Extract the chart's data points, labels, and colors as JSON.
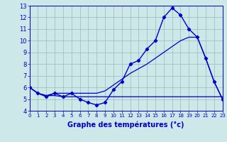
{
  "hours": [
    0,
    1,
    2,
    3,
    4,
    5,
    6,
    7,
    8,
    9,
    10,
    11,
    12,
    13,
    14,
    15,
    16,
    17,
    18,
    19,
    20,
    21,
    22,
    23
  ],
  "temp_actual": [
    6.0,
    5.5,
    5.2,
    5.5,
    5.2,
    5.5,
    5.0,
    4.7,
    4.5,
    4.7,
    5.8,
    6.5,
    8.0,
    8.3,
    9.3,
    10.0,
    12.0,
    12.8,
    12.2,
    11.0,
    10.3,
    8.5,
    6.5,
    5.0
  ],
  "temp_min": [
    6.0,
    5.5,
    5.3,
    5.3,
    5.2,
    5.2,
    5.2,
    5.2,
    5.2,
    5.2,
    5.2,
    5.2,
    5.2,
    5.2,
    5.2,
    5.2,
    5.2,
    5.2,
    5.2,
    5.2,
    5.2,
    5.2,
    5.2,
    5.2
  ],
  "temp_max": [
    6.0,
    5.5,
    5.3,
    5.5,
    5.5,
    5.5,
    5.5,
    5.5,
    5.5,
    5.7,
    6.2,
    6.7,
    7.2,
    7.6,
    8.0,
    8.5,
    9.0,
    9.5,
    10.0,
    10.3,
    10.3,
    8.5,
    6.5,
    5.0
  ],
  "line_color": "#0000cc",
  "bg_color": "#cce8e8",
  "grid_color": "#99bbbb",
  "xlabel": "Graphe des températures (°c)",
  "ylim": [
    4,
    13
  ],
  "xlim": [
    0,
    23
  ],
  "yticks": [
    4,
    5,
    6,
    7,
    8,
    9,
    10,
    11,
    12,
    13
  ],
  "xticks": [
    0,
    1,
    2,
    3,
    4,
    5,
    6,
    7,
    8,
    9,
    10,
    11,
    12,
    13,
    14,
    15,
    16,
    17,
    18,
    19,
    20,
    21,
    22,
    23
  ]
}
